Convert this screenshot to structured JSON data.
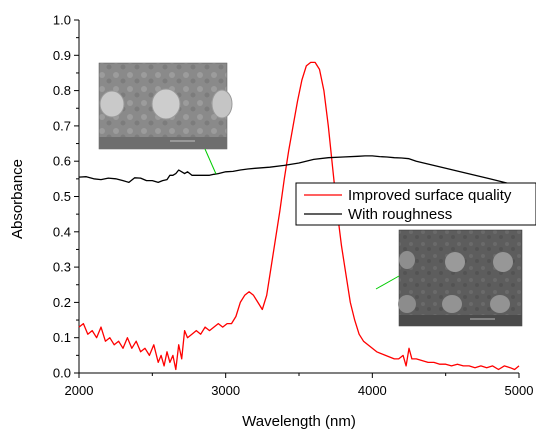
{
  "chart_data": {
    "type": "line",
    "title": "",
    "xlabel": "Wavelength (nm)",
    "ylabel": "Absorbance",
    "xlim": [
      2000,
      5000
    ],
    "ylim": [
      0.0,
      1.0
    ],
    "x_ticks": [
      2000,
      3000,
      4000,
      5000
    ],
    "x_tick_labels": [
      "2000",
      "3000",
      "4000",
      "5000"
    ],
    "y_ticks": [
      0.0,
      0.1,
      0.2,
      0.3,
      0.4,
      0.5,
      0.6,
      0.7,
      0.8,
      0.9,
      1.0
    ],
    "y_tick_labels": [
      "0.0",
      "0.1",
      "0.2",
      "0.3",
      "0.4",
      "0.5",
      "0.6",
      "0.7",
      "0.8",
      "0.9",
      "1.0"
    ],
    "grid": false,
    "legend_position": "center-right",
    "series": [
      {
        "name": "Improved surface quality",
        "color": "#ff0000",
        "x": [
          2000,
          2030,
          2060,
          2090,
          2120,
          2150,
          2180,
          2210,
          2240,
          2270,
          2300,
          2330,
          2360,
          2390,
          2420,
          2450,
          2480,
          2510,
          2540,
          2560,
          2580,
          2600,
          2620,
          2640,
          2660,
          2680,
          2700,
          2720,
          2740,
          2770,
          2800,
          2830,
          2860,
          2890,
          2920,
          2950,
          2980,
          3010,
          3040,
          3070,
          3100,
          3130,
          3160,
          3190,
          3220,
          3250,
          3280,
          3310,
          3340,
          3370,
          3400,
          3430,
          3460,
          3490,
          3520,
          3550,
          3580,
          3610,
          3640,
          3670,
          3700,
          3730,
          3760,
          3790,
          3820,
          3850,
          3880,
          3910,
          3940,
          3970,
          4000,
          4030,
          4060,
          4090,
          4120,
          4150,
          4180,
          4210,
          4230,
          4250,
          4270,
          4300,
          4340,
          4380,
          4420,
          4460,
          4500,
          4540,
          4580,
          4620,
          4660,
          4700,
          4740,
          4780,
          4820,
          4860,
          4900,
          4940,
          4970,
          5000
        ],
        "y": [
          0.13,
          0.14,
          0.11,
          0.12,
          0.1,
          0.13,
          0.09,
          0.1,
          0.08,
          0.09,
          0.07,
          0.1,
          0.07,
          0.09,
          0.06,
          0.07,
          0.05,
          0.08,
          0.03,
          0.05,
          0.02,
          0.06,
          0.03,
          0.05,
          0.01,
          0.08,
          0.04,
          0.12,
          0.1,
          0.11,
          0.12,
          0.11,
          0.13,
          0.12,
          0.13,
          0.14,
          0.13,
          0.14,
          0.14,
          0.16,
          0.2,
          0.22,
          0.23,
          0.22,
          0.2,
          0.18,
          0.22,
          0.3,
          0.38,
          0.46,
          0.55,
          0.63,
          0.7,
          0.77,
          0.83,
          0.87,
          0.88,
          0.88,
          0.86,
          0.8,
          0.7,
          0.58,
          0.46,
          0.36,
          0.28,
          0.2,
          0.15,
          0.11,
          0.09,
          0.08,
          0.07,
          0.06,
          0.055,
          0.05,
          0.045,
          0.04,
          0.04,
          0.05,
          0.02,
          0.07,
          0.04,
          0.04,
          0.035,
          0.03,
          0.03,
          0.025,
          0.025,
          0.02,
          0.025,
          0.02,
          0.02,
          0.015,
          0.02,
          0.015,
          0.02,
          0.01,
          0.02,
          0.015,
          0.01,
          0.02
        ]
      },
      {
        "name": "With roughness",
        "color": "#000000",
        "x": [
          2000,
          2050,
          2100,
          2150,
          2200,
          2250,
          2300,
          2340,
          2380,
          2420,
          2460,
          2500,
          2540,
          2570,
          2600,
          2620,
          2640,
          2660,
          2680,
          2700,
          2720,
          2740,
          2770,
          2800,
          2830,
          2860,
          2890,
          2920,
          2950,
          2980,
          3000,
          3050,
          3100,
          3150,
          3200,
          3300,
          3400,
          3500,
          3600,
          3700,
          3800,
          3900,
          3950,
          4000,
          4050,
          4100,
          4150,
          4200,
          4250,
          4300,
          4400,
          4500,
          4600,
          4700,
          4800,
          4900,
          5000
        ],
        "y": [
          0.555,
          0.556,
          0.55,
          0.548,
          0.552,
          0.55,
          0.545,
          0.54,
          0.553,
          0.552,
          0.545,
          0.545,
          0.54,
          0.545,
          0.548,
          0.56,
          0.56,
          0.565,
          0.575,
          0.57,
          0.565,
          0.57,
          0.56,
          0.56,
          0.56,
          0.56,
          0.56,
          0.563,
          0.565,
          0.568,
          0.57,
          0.571,
          0.575,
          0.578,
          0.58,
          0.583,
          0.588,
          0.595,
          0.605,
          0.61,
          0.612,
          0.614,
          0.615,
          0.615,
          0.613,
          0.612,
          0.61,
          0.609,
          0.607,
          0.6,
          0.59,
          0.58,
          0.57,
          0.56,
          0.55,
          0.54,
          0.53
        ]
      }
    ]
  }
}
